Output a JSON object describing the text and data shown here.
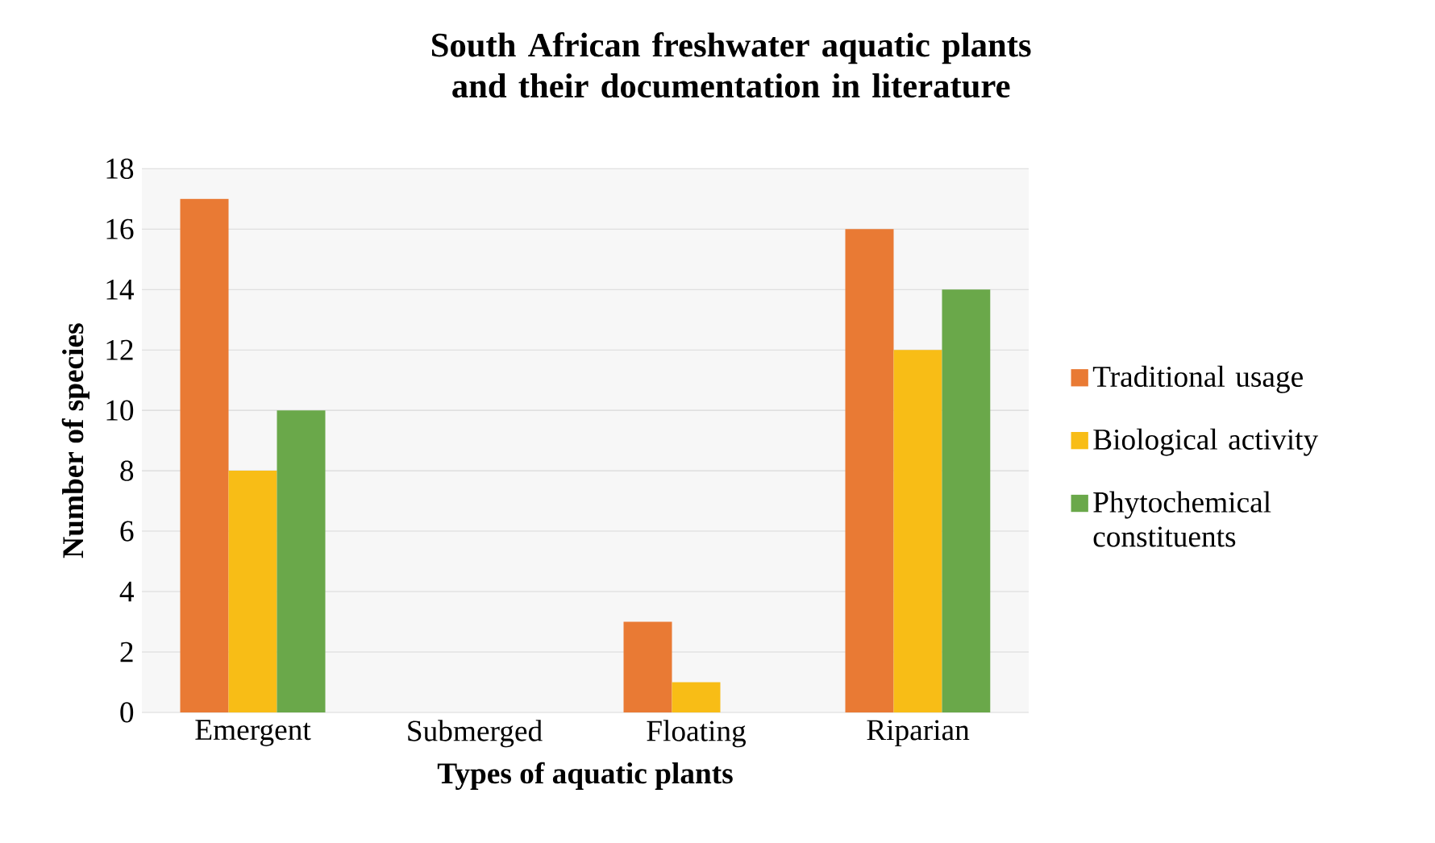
{
  "chart_data": {
    "type": "bar",
    "title": "South African freshwater aquatic plants and their documentation in literature",
    "xlabel": "Types of aquatic plants",
    "ylabel": "Number of species",
    "categories": [
      "Emergent",
      "Submerged",
      "Floating",
      "Riparian"
    ],
    "series": [
      {
        "name": "Traditional usage",
        "color": "#e97a34",
        "values": [
          17,
          0,
          3,
          16
        ]
      },
      {
        "name": "Biological activity",
        "color": "#f8bd16",
        "values": [
          8,
          0,
          1,
          12
        ]
      },
      {
        "name": "Phytochemical constituents",
        "color": "#6aa84a",
        "values": [
          10,
          0,
          0,
          14
        ]
      }
    ],
    "ylim": [
      0,
      18
    ],
    "yticks": [
      0,
      2,
      4,
      6,
      8,
      10,
      12,
      14,
      16,
      18
    ],
    "grid": "y",
    "legend": "right"
  }
}
